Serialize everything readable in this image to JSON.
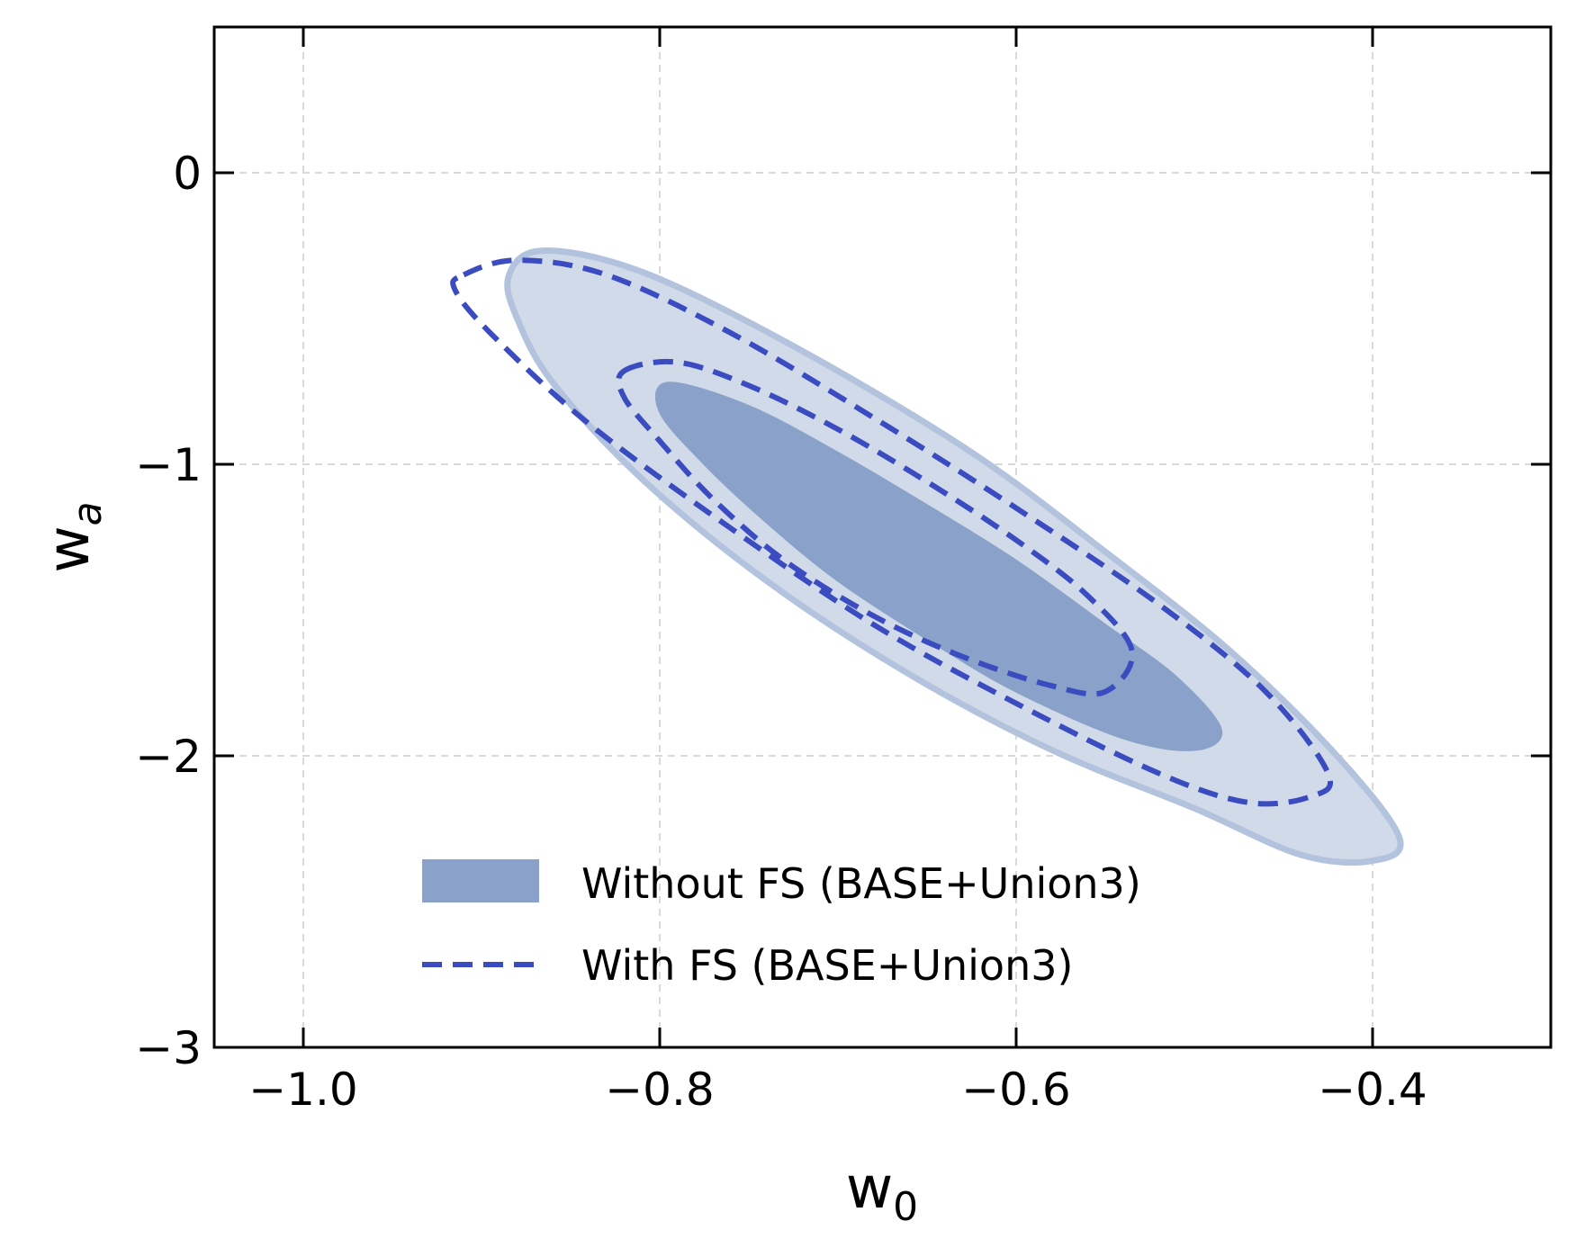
{
  "chart_data": {
    "type": "contour",
    "title": "",
    "xlabel": "w",
    "xlabel_sub": "0",
    "ylabel": "w",
    "ylabel_sub": "a",
    "xlim": [
      -1.05,
      -0.3
    ],
    "ylim": [
      -3.0,
      0.5
    ],
    "x_ticks": [
      -1.0,
      -0.8,
      -0.6,
      -0.4
    ],
    "x_tick_labels": [
      "−1.0",
      "−0.8",
      "−0.6",
      "−0.4"
    ],
    "y_ticks": [
      0,
      -1,
      -2,
      -3
    ],
    "y_tick_labels": [
      "0",
      "−1",
      "−2",
      "−3"
    ],
    "grid": true,
    "legend_position": "lower-right",
    "series": [
      {
        "name": "Without FS (BASE+Union3)",
        "style": "filled",
        "color": "#8aa2c9",
        "outer_color": "#d0dae9",
        "outer_edge_color": "#b3c3de",
        "contours": [
          {
            "level": "68%",
            "points": [
              [
                -0.795,
                -0.72
              ],
              [
                -0.75,
                -0.8
              ],
              [
                -0.7,
                -0.96
              ],
              [
                -0.65,
                -1.14
              ],
              [
                -0.6,
                -1.33
              ],
              [
                -0.55,
                -1.55
              ],
              [
                -0.51,
                -1.73
              ],
              [
                -0.485,
                -1.91
              ],
              [
                -0.5,
                -1.98
              ],
              [
                -0.54,
                -1.94
              ],
              [
                -0.6,
                -1.78
              ],
              [
                -0.65,
                -1.6
              ],
              [
                -0.7,
                -1.4
              ],
              [
                -0.74,
                -1.2
              ],
              [
                -0.775,
                -1.0
              ],
              [
                -0.8,
                -0.82
              ]
            ]
          },
          {
            "level": "95%",
            "points": [
              [
                -0.87,
                -0.27
              ],
              [
                -0.83,
                -0.3
              ],
              [
                -0.78,
                -0.42
              ],
              [
                -0.7,
                -0.68
              ],
              [
                -0.62,
                -0.98
              ],
              [
                -0.55,
                -1.3
              ],
              [
                -0.48,
                -1.64
              ],
              [
                -0.42,
                -2.0
              ],
              [
                -0.385,
                -2.28
              ],
              [
                -0.4,
                -2.36
              ],
              [
                -0.44,
                -2.34
              ],
              [
                -0.5,
                -2.18
              ],
              [
                -0.58,
                -1.98
              ],
              [
                -0.66,
                -1.72
              ],
              [
                -0.74,
                -1.4
              ],
              [
                -0.81,
                -1.05
              ],
              [
                -0.86,
                -0.72
              ],
              [
                -0.88,
                -0.5
              ],
              [
                -0.885,
                -0.36
              ]
            ]
          }
        ]
      },
      {
        "name": "With FS (BASE+Union3)",
        "style": "dashed",
        "color": "#3a4cc0",
        "contours": [
          {
            "level": "68%",
            "points": [
              [
                -0.82,
                -0.68
              ],
              [
                -0.79,
                -0.65
              ],
              [
                -0.75,
                -0.73
              ],
              [
                -0.7,
                -0.88
              ],
              [
                -0.65,
                -1.06
              ],
              [
                -0.6,
                -1.26
              ],
              [
                -0.56,
                -1.45
              ],
              [
                -0.535,
                -1.64
              ],
              [
                -0.55,
                -1.78
              ],
              [
                -0.58,
                -1.76
              ],
              [
                -0.63,
                -1.66
              ],
              [
                -0.68,
                -1.52
              ],
              [
                -0.73,
                -1.33
              ],
              [
                -0.77,
                -1.12
              ],
              [
                -0.8,
                -0.92
              ],
              [
                -0.82,
                -0.77
              ]
            ]
          },
          {
            "level": "95%",
            "points": [
              [
                -0.91,
                -0.35
              ],
              [
                -0.88,
                -0.3
              ],
              [
                -0.83,
                -0.35
              ],
              [
                -0.76,
                -0.55
              ],
              [
                -0.68,
                -0.84
              ],
              [
                -0.6,
                -1.15
              ],
              [
                -0.52,
                -1.48
              ],
              [
                -0.46,
                -1.78
              ],
              [
                -0.425,
                -2.06
              ],
              [
                -0.435,
                -2.14
              ],
              [
                -0.47,
                -2.16
              ],
              [
                -0.52,
                -2.06
              ],
              [
                -0.6,
                -1.82
              ],
              [
                -0.68,
                -1.55
              ],
              [
                -0.76,
                -1.22
              ],
              [
                -0.84,
                -0.86
              ],
              [
                -0.895,
                -0.55
              ],
              [
                -0.915,
                -0.4
              ]
            ]
          }
        ]
      }
    ]
  }
}
